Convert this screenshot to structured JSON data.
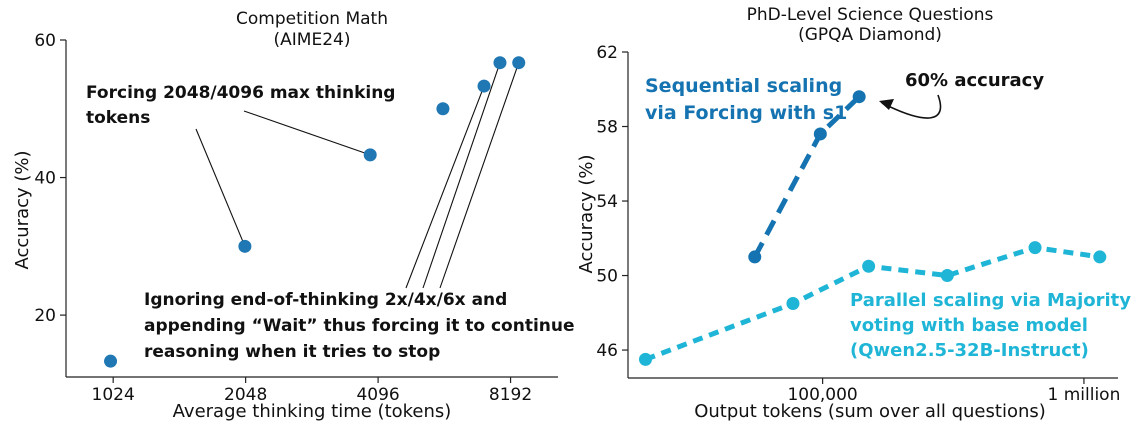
{
  "chart_data": [
    {
      "type": "scatter",
      "title": "Competition Math",
      "subtitle": "(AIME24)",
      "xlabel": "Average thinking time (tokens)",
      "ylabel": "Accuracy (%)",
      "x_scale": "log2",
      "xlim": [
        800,
        10500
      ],
      "ylim": [
        11,
        60
      ],
      "x_ticks": [
        1024,
        2048,
        4096,
        8192
      ],
      "x_tick_labels": [
        "1024",
        "2048",
        "4096",
        "8192"
      ],
      "y_ticks": [
        20,
        40,
        60
      ],
      "y_tick_labels": [
        "20",
        "40",
        "60"
      ],
      "grid": false,
      "series": [
        {
          "color": "#1f77b4",
          "points": [
            {
              "x": 1010,
              "y": 13.3
            },
            {
              "x": 2040,
              "y": 30.0
            },
            {
              "x": 3930,
              "y": 43.3
            },
            {
              "x": 5750,
              "y": 50.0
            },
            {
              "x": 7130,
              "y": 53.3
            },
            {
              "x": 7750,
              "y": 56.7
            },
            {
              "x": 8550,
              "y": 56.7
            }
          ]
        }
      ],
      "annotations": [
        {
          "lines": [
            "Forcing 2048/4096 max thinking",
            "tokens"
          ],
          "targets": [
            1,
            2
          ]
        },
        {
          "lines": [
            "Ignoring end-of-thinking 2x/4x/6x and",
            "appending “Wait” thus forcing it to continue",
            "reasoning when it tries to stop"
          ],
          "targets": [
            4,
            5,
            6
          ]
        }
      ]
    },
    {
      "type": "line",
      "title": "PhD-Level Science Questions",
      "subtitle": "(GPQA Diamond)",
      "xlabel": "Output tokens (sum over all questions)",
      "ylabel": "Accuracy (%)",
      "x_scale": "log10",
      "xlim": [
        18000,
        1350000
      ],
      "ylim": [
        44.5,
        62
      ],
      "x_ticks": [
        100000,
        1000000
      ],
      "x_tick_labels": [
        "100,000",
        "1 million"
      ],
      "y_ticks": [
        46,
        50,
        54,
        58,
        62
      ],
      "y_tick_labels": [
        "46",
        "50",
        "54",
        "58",
        "62"
      ],
      "grid": false,
      "series": [
        {
          "name": "Sequential scaling via Forcing with s1",
          "label_lines": [
            "Sequential scaling",
            "via Forcing with s1"
          ],
          "color": "#1473b0",
          "style": "dashed",
          "points": [
            {
              "x": 55000,
              "y": 51.0
            },
            {
              "x": 98000,
              "y": 57.6
            },
            {
              "x": 138000,
              "y": 59.6
            }
          ]
        },
        {
          "name": "Parallel scaling via Majority voting with base model (Qwen2.5-32B-Instruct)",
          "label_lines": [
            "Parallel scaling via Majority",
            "voting with base model",
            "(Qwen2.5-32B-Instruct)"
          ],
          "color": "#1fb5d6",
          "style": "dashed",
          "points": [
            {
              "x": 21000,
              "y": 45.5
            },
            {
              "x": 77000,
              "y": 48.5
            },
            {
              "x": 150000,
              "y": 50.5
            },
            {
              "x": 300000,
              "y": 50.0
            },
            {
              "x": 650000,
              "y": 51.5
            },
            {
              "x": 1150000,
              "y": 51.0
            }
          ]
        }
      ],
      "annotations": [
        {
          "text": "60% accuracy",
          "target_series": 0,
          "target_point": 2
        }
      ]
    }
  ]
}
